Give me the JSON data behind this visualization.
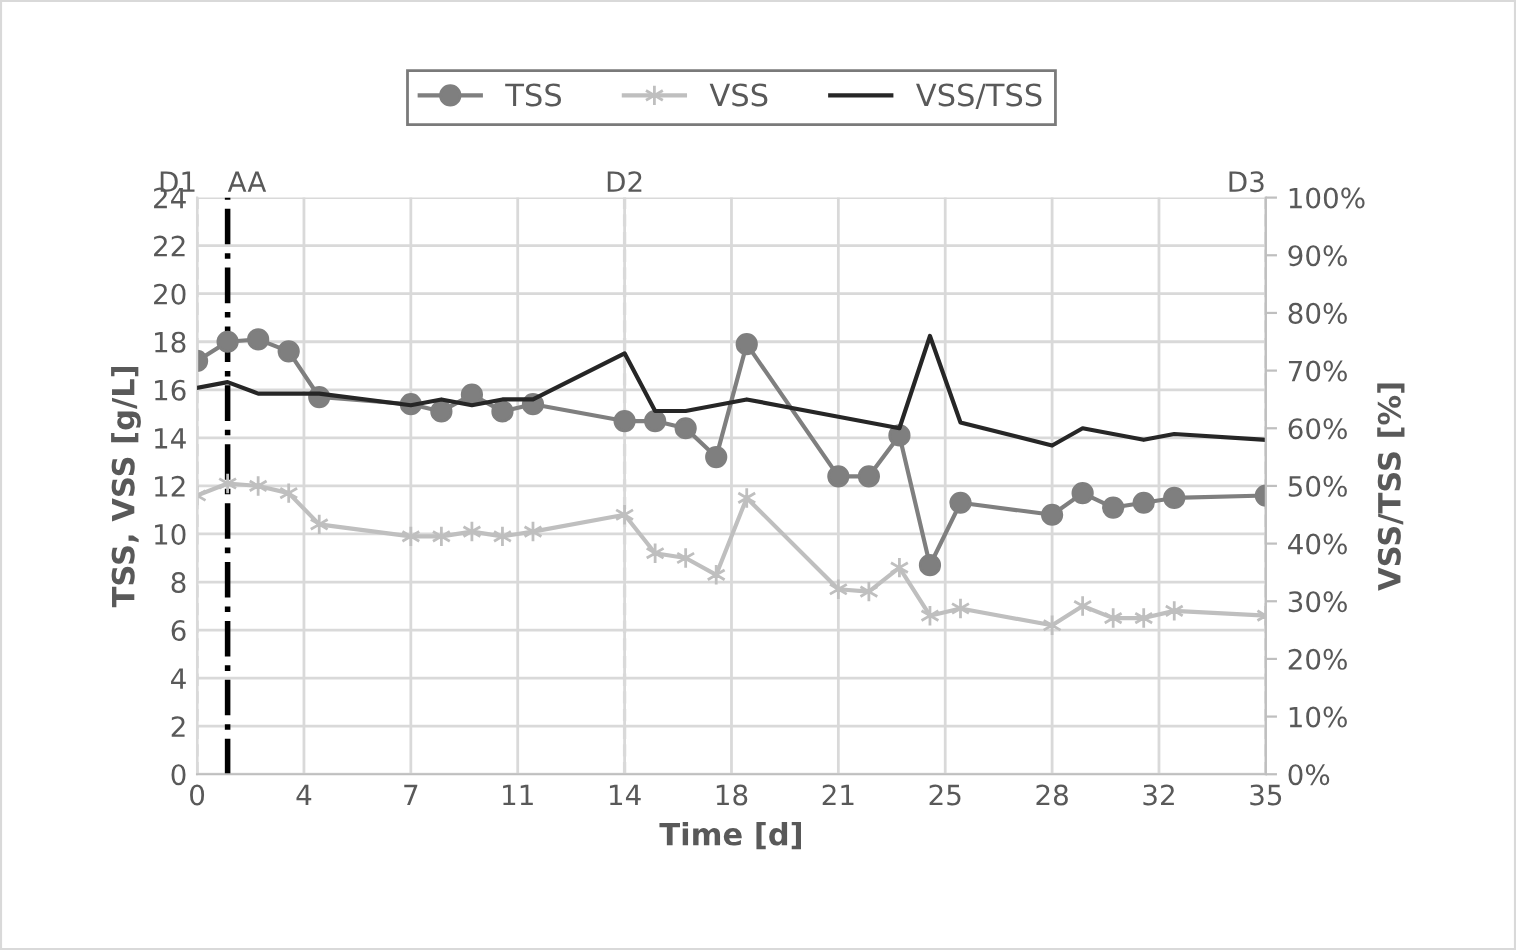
{
  "chart_data": {
    "type": "line",
    "xlabel": "Time [d]",
    "ylabel": "TSS, VSS [g/L]",
    "y2label": "VSS/TSS [%]",
    "xlim": [
      0,
      35
    ],
    "xticks": [
      0,
      {
        "value": 3.5,
        "label": "4"
      },
      7,
      {
        "value": 10.5,
        "label": "11"
      },
      14,
      {
        "value": 17.5,
        "label": "18"
      },
      21,
      {
        "value": 24.5,
        "label": "25"
      },
      28,
      {
        "value": 31.5,
        "label": "32"
      },
      35
    ],
    "ylim": [
      0,
      24
    ],
    "yticks": [
      0,
      2,
      4,
      6,
      8,
      10,
      12,
      14,
      16,
      18,
      20,
      22,
      24
    ],
    "y2lim": [
      0,
      100
    ],
    "y2ticks": [
      {
        "value": 0,
        "label": "0%"
      },
      {
        "value": 10,
        "label": "10%"
      },
      {
        "value": 20,
        "label": "20%"
      },
      {
        "value": 30,
        "label": "30%"
      },
      {
        "value": 40,
        "label": "40%"
      },
      {
        "value": 50,
        "label": "50%"
      },
      {
        "value": 60,
        "label": "60%"
      },
      {
        "value": 70,
        "label": "70%"
      },
      {
        "value": 80,
        "label": "80%"
      },
      {
        "value": 90,
        "label": "90%"
      },
      {
        "value": 100,
        "label": "100%"
      }
    ],
    "grid": true,
    "legend": "top",
    "series": [
      {
        "name": "TSS",
        "color": "#7f7f7f",
        "marker": "circle",
        "x": [
          0,
          1,
          2,
          3,
          4,
          7,
          8,
          9,
          10,
          11,
          14,
          15,
          16,
          17,
          18,
          21,
          22,
          23,
          24,
          25,
          28,
          29,
          30,
          31,
          32,
          35
        ],
        "values": [
          17.2,
          18.0,
          18.1,
          17.6,
          15.7,
          15.4,
          15.1,
          15.8,
          15.1,
          15.4,
          14.7,
          14.7,
          14.4,
          13.2,
          17.9,
          12.4,
          12.4,
          14.1,
          8.7,
          11.3,
          10.8,
          11.7,
          11.1,
          11.3,
          11.5,
          11.6
        ]
      },
      {
        "name": "VSS",
        "color": "#bfbfbf",
        "marker": "cross",
        "x": [
          0,
          1,
          2,
          3,
          4,
          7,
          8,
          9,
          10,
          11,
          14,
          15,
          16,
          17,
          18,
          21,
          22,
          23,
          24,
          25,
          28,
          29,
          30,
          31,
          32,
          35
        ],
        "values": [
          11.6,
          12.1,
          12.0,
          11.7,
          10.4,
          9.9,
          9.9,
          10.1,
          9.9,
          10.1,
          10.8,
          9.2,
          9.0,
          8.3,
          11.5,
          7.7,
          7.6,
          8.6,
          6.6,
          6.9,
          6.2,
          7.0,
          6.5,
          6.5,
          6.8,
          6.6
        ]
      },
      {
        "name": "VSS/TSS",
        "color": "#262626",
        "marker": "none",
        "axis": "y2",
        "x": [
          0,
          1,
          2,
          3,
          4,
          7,
          8,
          9,
          10,
          11,
          14,
          15,
          16,
          17,
          18,
          21,
          22,
          23,
          24,
          25,
          28,
          29,
          30,
          31,
          32,
          35
        ],
        "values": [
          67,
          68,
          66,
          66,
          66,
          64,
          65,
          64,
          65,
          65,
          73,
          63,
          63,
          64,
          65,
          62,
          61,
          60,
          76,
          61,
          57,
          60,
          59,
          58,
          59,
          58
        ]
      }
    ],
    "ref_lines": [
      {
        "axis": "x",
        "value": 0,
        "label": "D1",
        "color": "#d9d9d9",
        "line_style": "dashed"
      },
      {
        "axis": "x",
        "value": 1,
        "label": "AA",
        "color": "#000000",
        "line_style": "dashdot"
      },
      {
        "axis": "x",
        "value": 14,
        "label": "D2",
        "color": "#d9d9d9",
        "line_style": "dashed"
      },
      {
        "axis": "x",
        "value": 35,
        "label": "D3",
        "color": "#d9d9d9",
        "line_style": "dashed"
      }
    ]
  }
}
